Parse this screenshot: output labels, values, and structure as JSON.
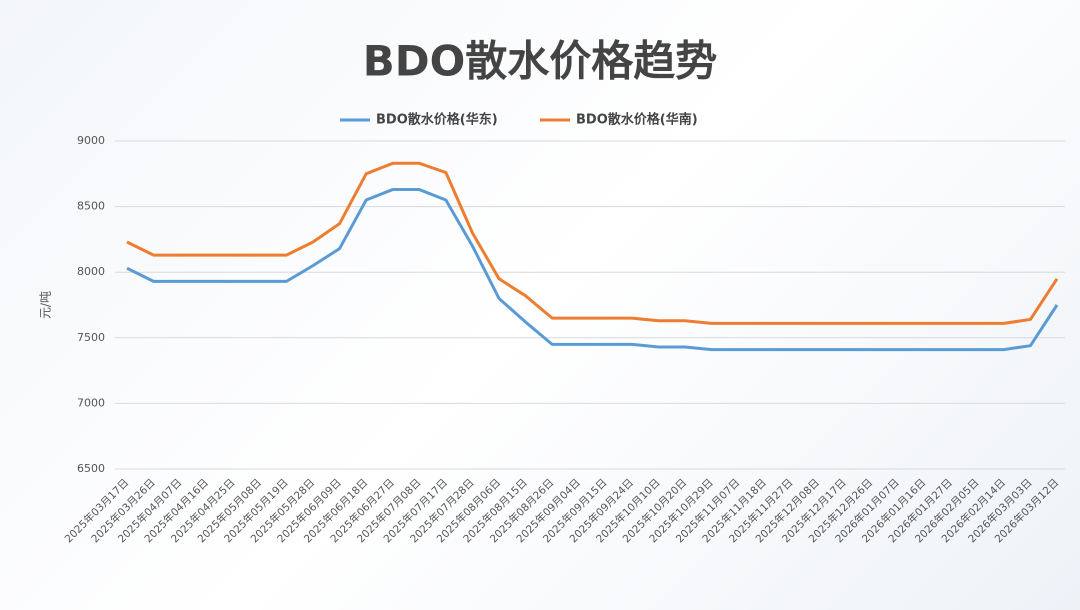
{
  "chart_data": {
    "type": "line",
    "title": "BDO散水价格趋势",
    "y_label": "元/吨",
    "categories": [
      "2025年03月17日",
      "2025年03月26日",
      "2025年04月07日",
      "2025年04月16日",
      "2025年04月25日",
      "2025年05月08日",
      "2025年05月19日",
      "2025年05月28日",
      "2025年06月09日",
      "2025年06月18日",
      "2025年06月27日",
      "2025年07月08日",
      "2025年07月17日",
      "2025年07月28日",
      "2025年08月06日",
      "2025年08月15日",
      "2025年08月26日",
      "2025年09月04日",
      "2025年09月15日",
      "2025年09月24日",
      "2025年10月10日",
      "2025年10月20日",
      "2025年10月29日",
      "2025年11月07日",
      "2025年11月18日",
      "2025年11月27日",
      "2025年12月08日",
      "2025年12月17日",
      "2025年12月26日",
      "2026年01月07日",
      "2026年01月16日",
      "2026年01月27日",
      "2026年02月05日",
      "2026年02月14日",
      "2026年03月03日",
      "2026年03月12日"
    ],
    "series": [
      {
        "name": "BDO散水价格(华东)",
        "color": "#5b9bd5",
        "values": [
          8030,
          7930,
          7930,
          7930,
          7930,
          7930,
          7930,
          8050,
          8180,
          8550,
          8630,
          8630,
          8550,
          8200,
          7800,
          7620,
          7450,
          7450,
          7450,
          7450,
          7430,
          7430,
          7410,
          7410,
          7410,
          7410,
          7410,
          7410,
          7410,
          7410,
          7410,
          7410,
          7410,
          7410,
          7440,
          7750
        ]
      },
      {
        "name": "BDO散水价格(华南)",
        "color": "#ed7d31",
        "values": [
          8230,
          8130,
          8130,
          8130,
          8130,
          8130,
          8130,
          8230,
          8370,
          8750,
          8830,
          8830,
          8760,
          8300,
          7950,
          7820,
          7650,
          7650,
          7650,
          7650,
          7630,
          7630,
          7610,
          7610,
          7610,
          7610,
          7610,
          7610,
          7610,
          7610,
          7610,
          7610,
          7610,
          7610,
          7640,
          7950
        ]
      }
    ],
    "ylim": [
      6500,
      9000
    ],
    "yticks": [
      6500,
      7000,
      7500,
      8000,
      8500,
      9000
    ],
    "grid": true,
    "legend": "top"
  }
}
